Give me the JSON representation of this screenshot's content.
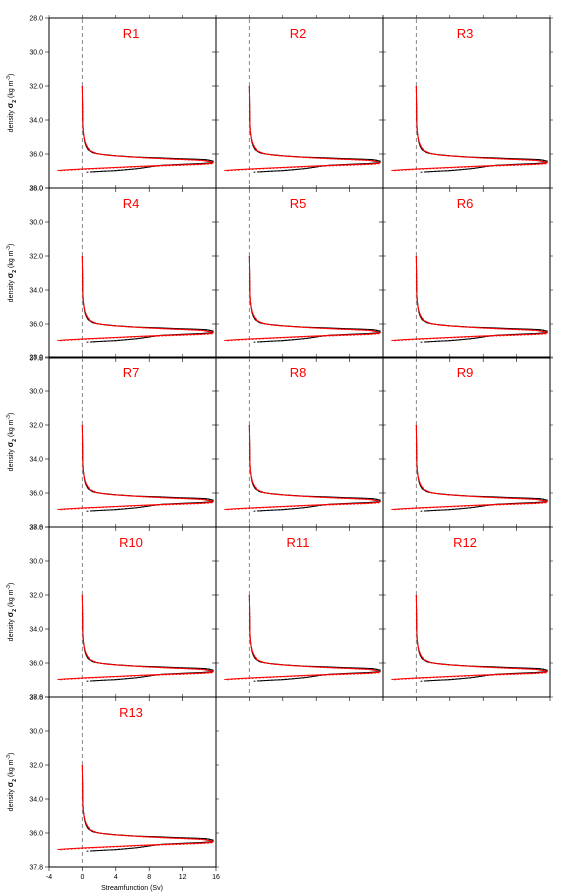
{
  "figure": {
    "xlabel": "Streamfunction (Sv)",
    "ylabel_main": "density ",
    "ylabel_sigma": "σ",
    "ylabel_sub": "2",
    "ylabel_units": " (kg m",
    "ylabel_sup": "-3",
    "ylabel_close": ")",
    "title_color": "#ff0000",
    "axis_color": "#000000",
    "zero_line_color": "#888888",
    "series_colors": [
      "#000000",
      "#ff0000"
    ]
  },
  "chart_data": {
    "type": "line",
    "layout": "panel-grid",
    "xlim": [
      -4,
      16
    ],
    "ylim": [
      28,
      38
    ],
    "y_inverted": true,
    "xticks": [
      "-4",
      "0",
      "4",
      "8",
      "12",
      "16"
    ],
    "yticks": [
      "28.0",
      "30.0",
      "32.0",
      "34.0",
      "36.0",
      "38.0"
    ],
    "yticks_outer": [
      "28.0",
      "30.0",
      "32.0",
      "34.0",
      "36.0",
      "37.8"
    ],
    "panel_titles": [
      "R1",
      "R2",
      "R3",
      "R4",
      "R5",
      "R6",
      "R7",
      "R8",
      "R9",
      "R10",
      "R11",
      "R12",
      "R13"
    ],
    "reference_line_x": 0,
    "series": [
      {
        "style": "solid",
        "color": "#000000",
        "x": [
          0,
          0.02,
          0.05,
          0.1,
          0.2,
          0.3,
          0.45,
          0.7,
          1.2,
          2.2,
          4,
          6.5,
          9,
          11.5,
          13.5,
          14.8,
          15.6,
          15.4,
          14.2,
          12,
          9.5,
          8.5,
          7.8,
          6.8,
          5.5,
          4,
          2.5,
          1
        ],
        "y": [
          32.0,
          33.0,
          34.0,
          34.6,
          35.0,
          35.3,
          35.55,
          35.75,
          35.92,
          36.02,
          36.1,
          36.18,
          36.22,
          36.27,
          36.3,
          36.33,
          36.42,
          36.52,
          36.56,
          36.6,
          36.66,
          36.72,
          36.78,
          36.85,
          36.92,
          36.98,
          37.02,
          37.06
        ]
      },
      {
        "style": "dashed",
        "color": "#000000",
        "x": [
          0,
          0.02,
          0.05,
          0.1,
          0.2,
          0.3,
          0.5,
          0.8,
          1.4,
          2.6,
          4.5,
          7,
          9.5,
          12,
          14,
          15.2,
          15.8,
          15.3,
          14,
          11.5,
          9,
          8.2,
          7.5,
          6.5,
          5,
          3.5,
          2,
          0.5
        ],
        "y": [
          32.0,
          33.0,
          34.0,
          34.6,
          35.0,
          35.3,
          35.55,
          35.77,
          35.95,
          36.05,
          36.13,
          36.2,
          36.25,
          36.3,
          36.33,
          36.36,
          36.44,
          36.54,
          36.58,
          36.63,
          36.69,
          36.75,
          36.8,
          36.87,
          36.93,
          36.99,
          37.03,
          37.07
        ]
      },
      {
        "style": "solid",
        "color": "#ff0000",
        "x": [
          0,
          0.02,
          0.05,
          0.1,
          0.2,
          0.35,
          0.55,
          0.9,
          1.6,
          3,
          5,
          7.5,
          10,
          12.5,
          14.2,
          15.3,
          15.5,
          14,
          11,
          7,
          3.5,
          0.5,
          -1.5,
          -2.5,
          -3
        ],
        "y": [
          32.0,
          33.0,
          34.0,
          34.6,
          35.0,
          35.3,
          35.55,
          35.8,
          35.97,
          36.07,
          36.15,
          36.22,
          36.28,
          36.33,
          36.37,
          36.45,
          36.55,
          36.6,
          36.65,
          36.72,
          36.8,
          36.87,
          36.92,
          36.95,
          36.97
        ]
      },
      {
        "style": "dashed",
        "color": "#ff0000",
        "x": [
          0,
          0.02,
          0.05,
          0.1,
          0.2,
          0.35,
          0.6,
          1,
          1.8,
          3.3,
          5.5,
          8,
          10.5,
          13,
          14.6,
          15.6,
          15.7,
          14.3,
          11.3,
          7.3,
          3.8,
          0.8,
          -1.2,
          -2.3,
          -2.8
        ],
        "y": [
          32.0,
          33.0,
          34.0,
          34.6,
          35.0,
          35.3,
          35.57,
          35.82,
          35.99,
          36.09,
          36.17,
          36.24,
          36.3,
          36.35,
          36.39,
          36.47,
          36.57,
          36.62,
          36.67,
          36.74,
          36.82,
          36.89,
          36.94,
          36.97,
          36.99
        ]
      }
    ]
  }
}
